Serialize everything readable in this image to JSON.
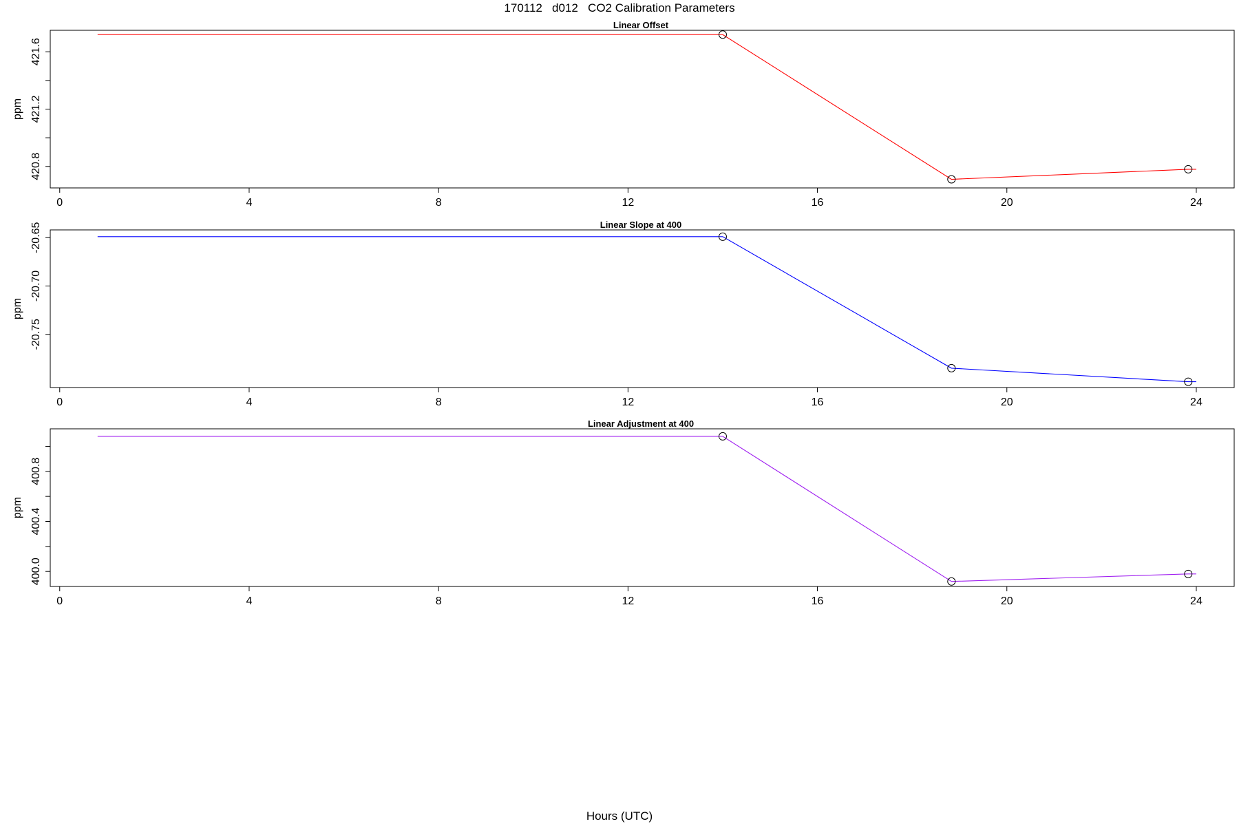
{
  "figure": {
    "title": "170112   d012   CO2 Calibration Parameters",
    "xlabel": "Hours (UTC)"
  },
  "chart_data": [
    {
      "type": "line",
      "title": "Linear Offset",
      "ylabel": "ppm",
      "xlim": [
        -0.2,
        24.8
      ],
      "ylim": [
        420.65,
        421.75
      ],
      "xticks": [
        0,
        4,
        8,
        12,
        16,
        20,
        24
      ],
      "yticks": [
        420.8,
        421.2,
        421.6
      ],
      "yminor": [
        421.0,
        421.4
      ],
      "ytick_labels": [
        "420.8",
        "421.2",
        "421.6"
      ],
      "color": "#ff0000",
      "series": [
        {
          "x": [
            0.8,
            14.0,
            18.83,
            23.83,
            24.0
          ],
          "y": [
            421.72,
            421.72,
            420.71,
            420.78,
            420.78
          ],
          "markers": [
            false,
            true,
            true,
            true,
            false
          ]
        }
      ]
    },
    {
      "type": "line",
      "title": "Linear Slope at 400",
      "ylabel": "ppm",
      "xlim": [
        -0.2,
        24.8
      ],
      "ylim": [
        -20.805,
        -20.642
      ],
      "xticks": [
        0,
        4,
        8,
        12,
        16,
        20,
        24
      ],
      "yticks": [
        -20.75,
        -20.7,
        -20.65
      ],
      "ytick_labels": [
        "-20.75",
        "-20.70",
        "-20.65"
      ],
      "color": "#0000ff",
      "series": [
        {
          "x": [
            0.8,
            14.0,
            18.83,
            23.83,
            24.0
          ],
          "y": [
            -20.649,
            -20.649,
            -20.785,
            -20.799,
            -20.799
          ],
          "markers": [
            false,
            true,
            true,
            true,
            false
          ]
        }
      ]
    },
    {
      "type": "line",
      "title": "Linear Adjustment at 400",
      "ylabel": "ppm",
      "xlim": [
        -0.2,
        24.8
      ],
      "ylim": [
        399.88,
        401.14
      ],
      "xticks": [
        0,
        4,
        8,
        12,
        16,
        20,
        24
      ],
      "yticks": [
        400.0,
        400.4,
        400.8
      ],
      "yminor": [
        400.2,
        400.6,
        401.0
      ],
      "ytick_labels": [
        "400.0",
        "400.4",
        "400.8"
      ],
      "color": "#a020f0",
      "series": [
        {
          "x": [
            0.8,
            14.0,
            18.83,
            23.83,
            24.0
          ],
          "y": [
            401.08,
            401.08,
            399.92,
            399.98,
            399.98
          ],
          "markers": [
            false,
            true,
            true,
            true,
            false
          ]
        }
      ]
    }
  ]
}
